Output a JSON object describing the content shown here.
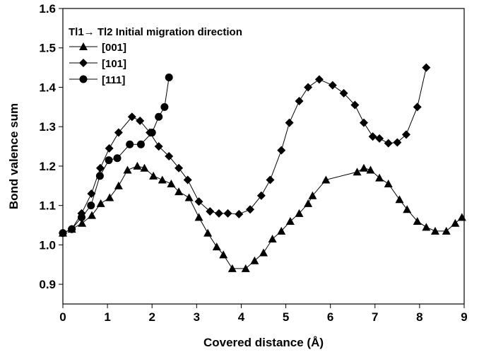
{
  "chart_data": {
    "type": "line",
    "x_label": "Covered distance (Å)",
    "y_label": "Bond valence sum",
    "legend_title": "Tl1→ Tl2 Initial migration direction",
    "xlim": [
      0,
      9
    ],
    "xticks": [
      0,
      1,
      2,
      3,
      4,
      5,
      6,
      7,
      8,
      9
    ],
    "ylim": [
      0.85,
      1.6
    ],
    "yticks": [
      0.9,
      {
        "value": 1.0,
        "label": "1.0"
      },
      1.1,
      1.2,
      1.3,
      1.4,
      1.5,
      1.6
    ],
    "series": [
      {
        "name": "[001]",
        "color": "#000000",
        "marker": "triangle",
        "x": [
          0,
          0.2,
          0.43,
          0.65,
          0.85,
          1.05,
          1.25,
          1.45,
          1.67,
          1.83,
          2.03,
          2.23,
          2.43,
          2.6,
          2.83,
          3.05,
          3.25,
          3.45,
          3.6,
          3.8,
          4.1,
          4.3,
          4.5,
          4.7,
          4.9,
          5.1,
          5.3,
          5.5,
          5.6,
          5.9,
          6.6,
          6.75,
          6.9,
          7.1,
          7.3,
          7.55,
          7.72,
          7.95,
          8.15,
          8.35,
          8.6,
          8.8,
          8.95
        ],
        "values": [
          1.03,
          1.04,
          1.055,
          1.075,
          1.105,
          1.12,
          1.15,
          1.19,
          1.2,
          1.195,
          1.175,
          1.165,
          1.155,
          1.135,
          1.12,
          1.07,
          1.03,
          0.995,
          0.975,
          0.94,
          0.94,
          0.96,
          0.98,
          1.015,
          1.035,
          1.06,
          1.08,
          1.105,
          1.125,
          1.165,
          1.185,
          1.195,
          1.19,
          1.17,
          1.155,
          1.115,
          1.09,
          1.06,
          1.045,
          1.035,
          1.035,
          1.055,
          1.07
        ]
      },
      {
        "name": "[101]",
        "color": "#000000",
        "marker": "diamond",
        "x": [
          0,
          0.2,
          0.42,
          0.64,
          0.84,
          1.04,
          1.25,
          1.55,
          1.73,
          1.95,
          2.15,
          2.38,
          2.6,
          2.8,
          3.05,
          3.3,
          3.5,
          3.7,
          3.95,
          4.2,
          4.45,
          4.65,
          4.9,
          5.08,
          5.3,
          5.5,
          5.75,
          6.05,
          6.3,
          6.55,
          6.75,
          6.95,
          7.1,
          7.3,
          7.5,
          7.7,
          7.95,
          8.15
        ],
        "values": [
          1.03,
          1.04,
          1.08,
          1.13,
          1.195,
          1.245,
          1.285,
          1.325,
          1.315,
          1.285,
          1.25,
          1.225,
          1.195,
          1.165,
          1.11,
          1.085,
          1.08,
          1.08,
          1.078,
          1.09,
          1.125,
          1.165,
          1.24,
          1.31,
          1.365,
          1.4,
          1.42,
          1.405,
          1.385,
          1.355,
          1.31,
          1.275,
          1.27,
          1.258,
          1.26,
          1.28,
          1.35,
          1.45
        ]
      },
      {
        "name": "[111]",
        "color": "#000000",
        "marker": "circle",
        "x": [
          0,
          0.2,
          0.42,
          0.63,
          0.83,
          1.03,
          1.22,
          1.5,
          1.75,
          2.0,
          2.15,
          2.28,
          2.38
        ],
        "values": [
          1.03,
          1.04,
          1.07,
          1.1,
          1.175,
          1.215,
          1.22,
          1.255,
          1.255,
          1.285,
          1.325,
          1.35,
          1.425
        ]
      }
    ]
  }
}
